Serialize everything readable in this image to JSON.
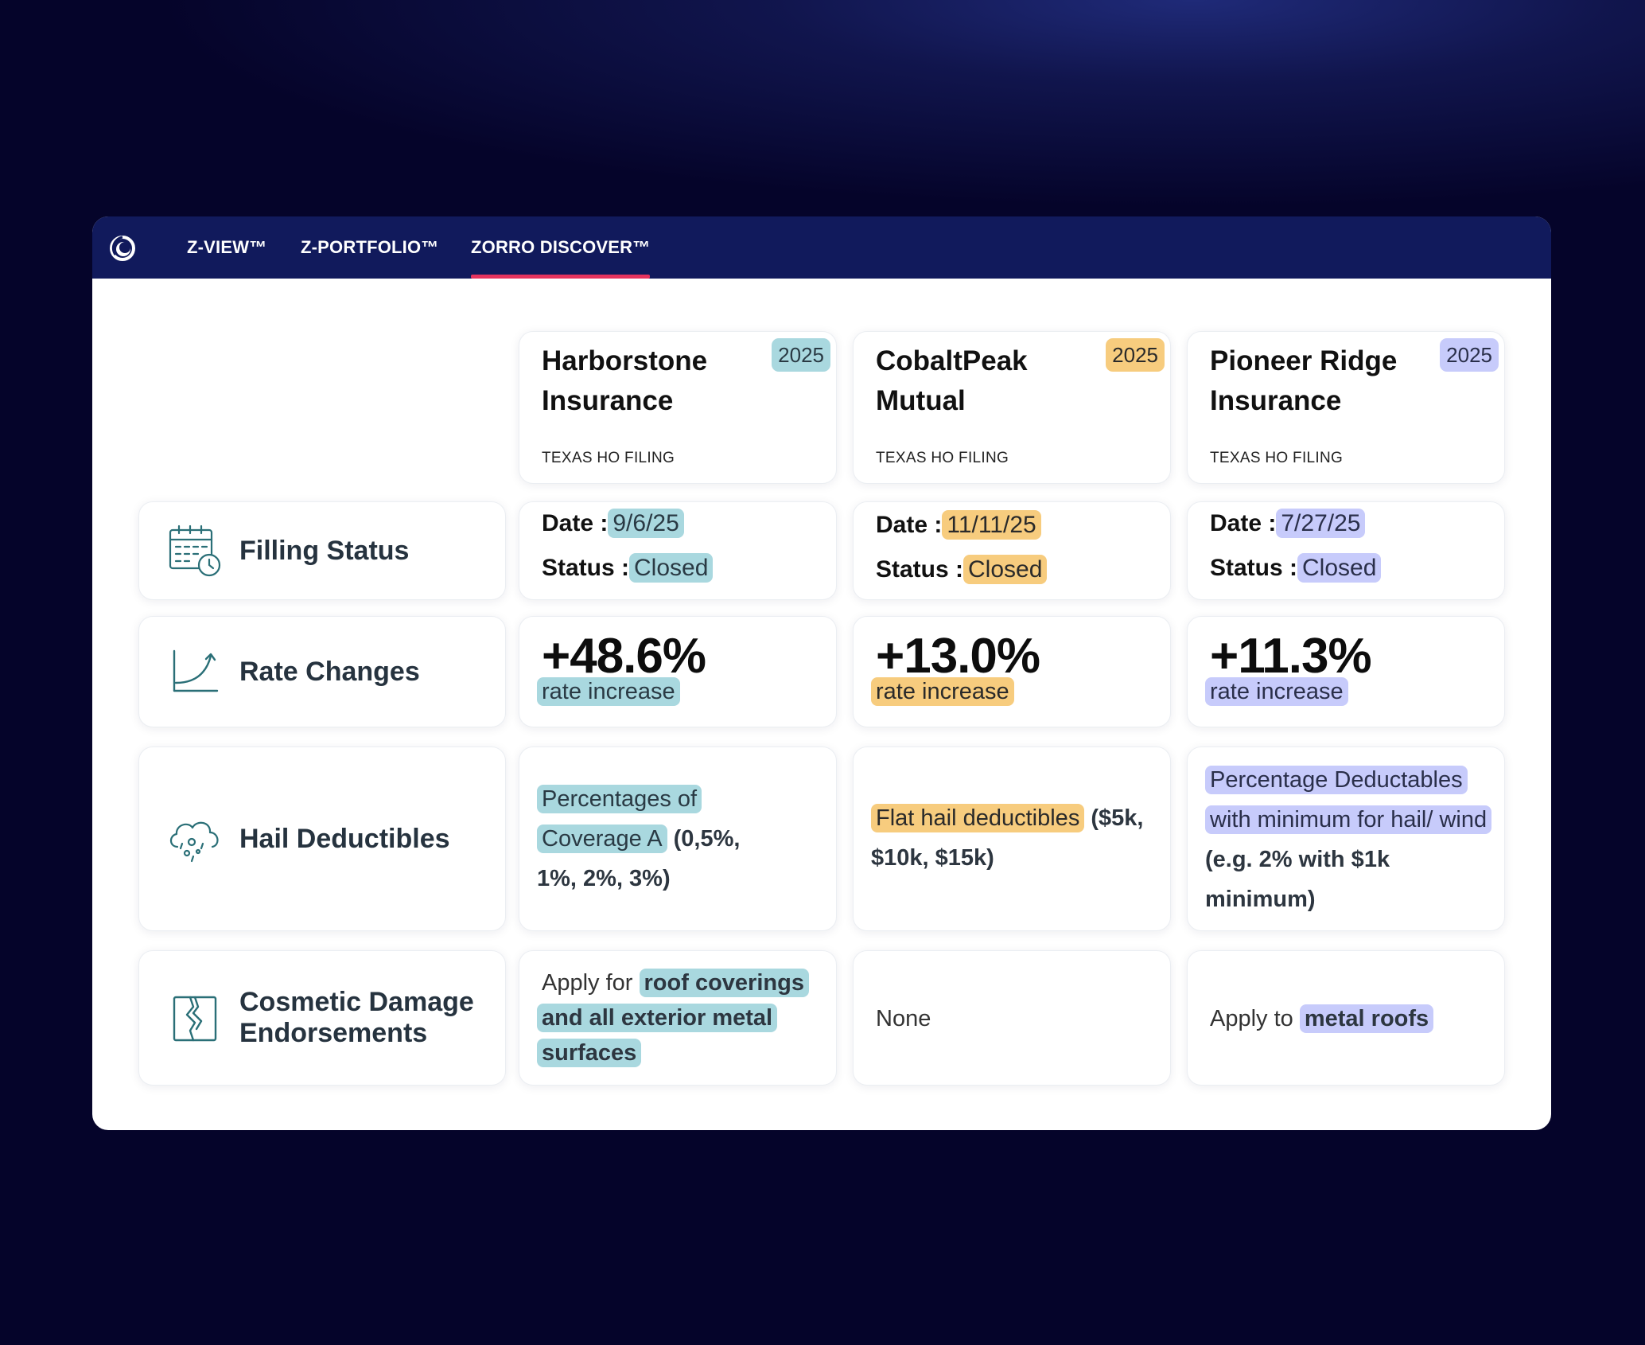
{
  "nav": {
    "logo": "circle-logo-icon",
    "tabs": [
      {
        "label": "Z-VIEW™",
        "active": false
      },
      {
        "label": "Z-PORTFOLIO™",
        "active": false
      },
      {
        "label": "ZORRO DISCOVER™",
        "active": true
      }
    ],
    "active_color": "#e6335e"
  },
  "colors": {
    "teal": "#a9d8df",
    "amber": "#f7cc7e",
    "lavender": "#c7cbfb",
    "topbar": "#111a5c"
  },
  "rows": {
    "filling_status": {
      "label": "Filling Status",
      "icon": "calendar-clock-icon"
    },
    "rate_changes": {
      "label": "Rate Changes",
      "icon": "trend-up-chart-icon"
    },
    "hail_deductibles": {
      "label": "Hail Deductibles",
      "icon": "hail-cloud-icon"
    },
    "cosmetic_damage": {
      "label_line1": "Cosmetic Damage",
      "label_line2": "Endorsements",
      "icon": "cracked-panel-icon"
    }
  },
  "companies": [
    {
      "name": "Harborstone Insurance",
      "year": "2025",
      "filing": "TEXAS HO FILING",
      "accent": "teal",
      "date_label": "Date :",
      "date": "9/6/25",
      "status_label": "Status :",
      "status": "Closed",
      "rate": "+48.6%",
      "rate_sub": "rate increase",
      "hail_hl": "Percentages of Coverage A",
      "hail_rest": "(0,5%, 1%, 2%, 3%)",
      "cosmetic_plain": "Apply for",
      "cosmetic_hl": "roof coverings and all exterior metal surfaces"
    },
    {
      "name": "CobaltPeak Mutual",
      "year": "2025",
      "filing": "TEXAS HO FILING",
      "accent": "amber",
      "date_label": "Date :",
      "date": "11/11/25",
      "status_label": "Status :",
      "status": "Closed",
      "rate": "+13.0%",
      "rate_sub": "rate increase",
      "hail_hl": "Flat hail deductibles",
      "hail_rest": "($5k, $10k, $15k)",
      "cosmetic_plain": "None",
      "cosmetic_hl": ""
    },
    {
      "name": "Pioneer Ridge Insurance",
      "year": "2025",
      "filing": "TEXAS HO FILING",
      "accent": "lavender",
      "date_label": "Date :",
      "date": "7/27/25",
      "status_label": "Status :",
      "status": "Closed",
      "rate": "+11.3%",
      "rate_sub": "rate increase",
      "hail_hl": "Percentage Deductables with minimum for hail/ wind",
      "hail_rest": "(e.g. 2% with $1k minimum)",
      "cosmetic_plain": "Apply to",
      "cosmetic_hl": "metal roofs"
    }
  ]
}
